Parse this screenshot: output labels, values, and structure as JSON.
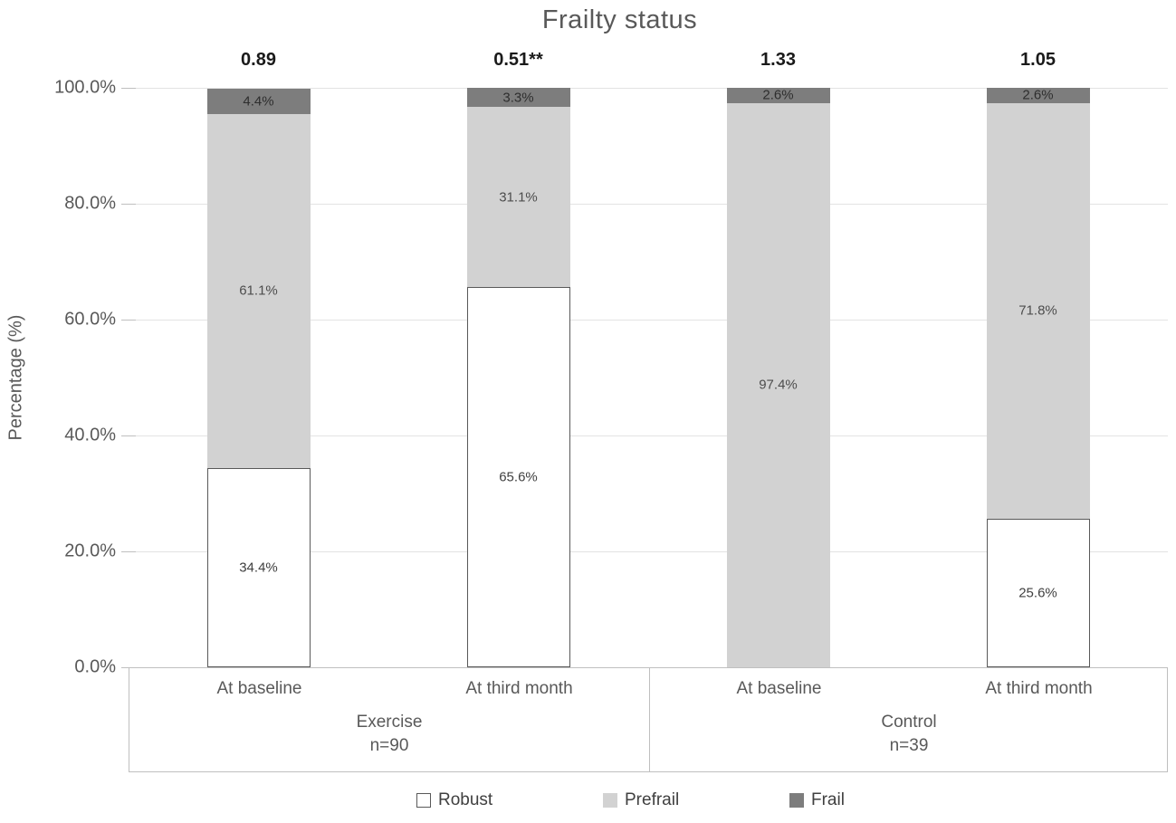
{
  "chart_data": {
    "type": "bar",
    "stacked": true,
    "title": "Frailty status",
    "xlabel": "",
    "ylabel": "Percentage (%)",
    "ylim": [
      0,
      100
    ],
    "y_tick_labels": [
      "0.0%",
      "20.0%",
      "40.0%",
      "60.0%",
      "80.0%",
      "100.0%"
    ],
    "grid": true,
    "legend_position": "bottom",
    "categories": [
      "At baseline",
      "At third month",
      "At baseline",
      "At third month"
    ],
    "group_labels": [
      {
        "label": "Exercise",
        "n": "n=90"
      },
      {
        "label": "Control",
        "n": "n=39"
      }
    ],
    "bar_annotations": [
      "0.89",
      "0.51**",
      "1.33",
      "1.05"
    ],
    "series": [
      {
        "name": "Robust",
        "color": "#ffffff",
        "border_color": "#595959",
        "label_color": "#404040",
        "values": [
          34.4,
          65.6,
          0,
          25.6
        ],
        "labels": [
          "34.4%",
          "65.6%",
          "",
          "25.6%"
        ]
      },
      {
        "name": "Prefrail",
        "color": "#d2d2d2",
        "border_color": "",
        "label_color": "#4d4d4d",
        "values": [
          61.1,
          31.1,
          97.4,
          71.8
        ],
        "labels": [
          "61.1%",
          "31.1%",
          "97.4%",
          "71.8%"
        ]
      },
      {
        "name": "Frail",
        "color": "#7d7d7d",
        "border_color": "",
        "label_color": "#2e2e2e",
        "values": [
          4.4,
          3.3,
          2.6,
          2.6
        ],
        "labels": [
          "4.4%",
          "3.3%",
          "2.6%",
          "2.6%"
        ]
      }
    ]
  }
}
